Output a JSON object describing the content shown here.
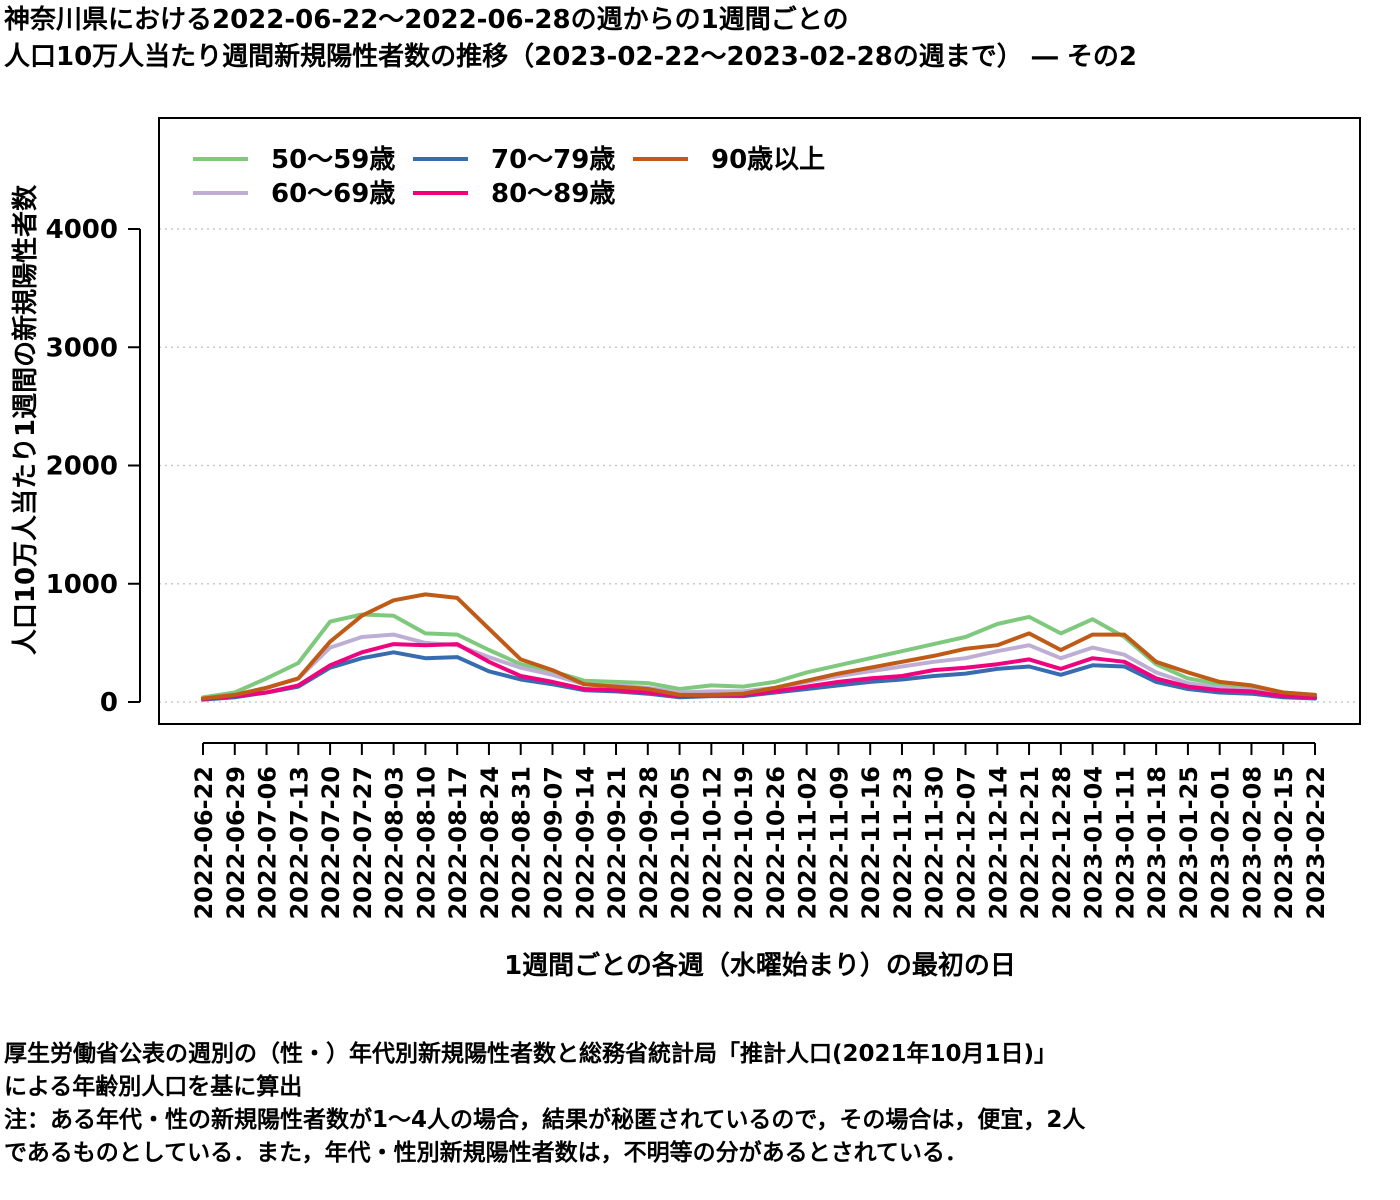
{
  "title": {
    "line1": "神奈川県における2022-06-22～2022-06-28の週からの1週間ごとの",
    "line2": "人口10万人当たり週間新規陽性者数の推移（2023-02-22～2023-02-28の週まで） ― その2"
  },
  "notes": [
    "厚生労働省公表の週別の（性・）年代別新規陽性者数と総務省統計局「推計人口(2021年10月1日)」",
    "による年齢別人口を基に算出",
    "注：ある年代・性の新規陽性者数が1～4人の場合，結果が秘匿されているので，その場合は，便宜，2人",
    "であるものとしている．また，年代・性別新規陽性者数は，不明等の分があるとされている．"
  ],
  "chart_data": {
    "type": "line",
    "xlabel": "1週間ごとの各週（水曜始まり）の最初の日",
    "ylabel": "人口10万人当たり1週間の新規陽性者数",
    "ylim": [
      -150,
      4900
    ],
    "yticks": [
      0,
      1000,
      2000,
      3000,
      4000
    ],
    "grid": "horizontal dotted",
    "legend_position": "top-left",
    "categories": [
      "2022-06-22",
      "2022-06-29",
      "2022-07-06",
      "2022-07-13",
      "2022-07-20",
      "2022-07-27",
      "2022-08-03",
      "2022-08-10",
      "2022-08-17",
      "2022-08-24",
      "2022-08-31",
      "2022-09-07",
      "2022-09-14",
      "2022-09-21",
      "2022-09-28",
      "2022-10-05",
      "2022-10-12",
      "2022-10-19",
      "2022-10-26",
      "2022-11-02",
      "2022-11-09",
      "2022-11-16",
      "2022-11-23",
      "2022-11-30",
      "2022-12-07",
      "2022-12-14",
      "2022-12-21",
      "2022-12-28",
      "2023-01-04",
      "2023-01-11",
      "2023-01-18",
      "2023-01-25",
      "2023-02-01",
      "2023-02-08",
      "2023-02-15",
      "2023-02-22"
    ],
    "series": [
      {
        "name": "50～59歳",
        "color": "#7fc97f",
        "values": [
          40,
          80,
          200,
          330,
          680,
          740,
          730,
          580,
          570,
          440,
          320,
          260,
          180,
          170,
          160,
          110,
          140,
          130,
          170,
          250,
          310,
          370,
          430,
          490,
          550,
          660,
          720,
          580,
          700,
          550,
          320,
          200,
          150,
          120,
          80,
          60
        ]
      },
      {
        "name": "60～69歳",
        "color": "#beaed4",
        "values": [
          30,
          60,
          120,
          200,
          460,
          550,
          570,
          500,
          480,
          380,
          290,
          230,
          150,
          140,
          120,
          80,
          90,
          90,
          120,
          170,
          220,
          260,
          300,
          340,
          370,
          430,
          480,
          370,
          460,
          400,
          250,
          160,
          120,
          100,
          60,
          40
        ]
      },
      {
        "name": "70～79歳",
        "color": "#386cb0",
        "values": [
          20,
          40,
          80,
          130,
          290,
          370,
          420,
          370,
          380,
          260,
          190,
          150,
          100,
          90,
          70,
          40,
          50,
          50,
          80,
          110,
          140,
          170,
          190,
          220,
          240,
          280,
          300,
          230,
          310,
          300,
          170,
          110,
          80,
          70,
          40,
          30
        ]
      },
      {
        "name": "80～89歳",
        "color": "#f0027f",
        "values": [
          25,
          50,
          80,
          140,
          310,
          420,
          490,
          480,
          490,
          340,
          220,
          170,
          110,
          100,
          80,
          50,
          60,
          60,
          90,
          130,
          170,
          200,
          220,
          270,
          290,
          320,
          360,
          280,
          370,
          340,
          200,
          130,
          100,
          90,
          50,
          40
        ]
      },
      {
        "name": "90歳以上",
        "color": "#bf5b17",
        "values": [
          30,
          60,
          120,
          200,
          510,
          730,
          860,
          910,
          880,
          620,
          360,
          270,
          150,
          130,
          110,
          60,
          60,
          70,
          120,
          180,
          240,
          290,
          340,
          390,
          450,
          480,
          580,
          440,
          570,
          570,
          340,
          250,
          170,
          140,
          80,
          60
        ]
      }
    ]
  }
}
